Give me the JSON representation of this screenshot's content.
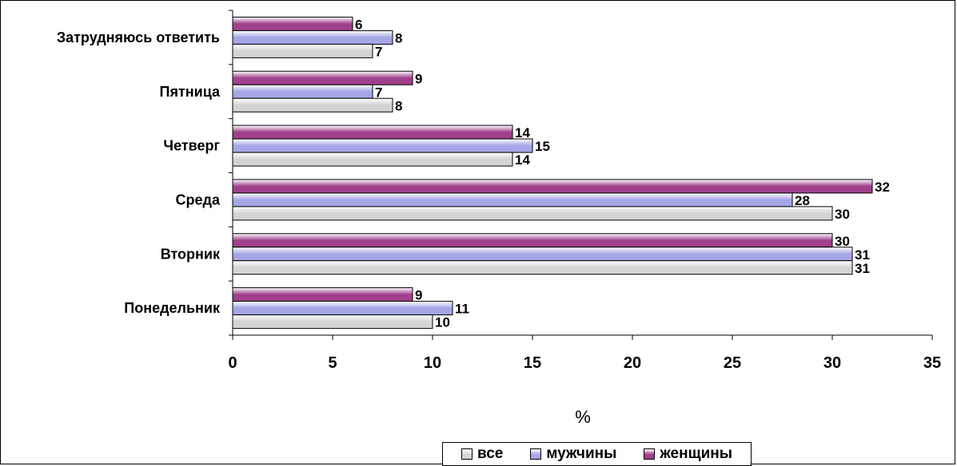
{
  "chart_data": {
    "type": "bar",
    "orientation": "horizontal",
    "categories": [
      "Понедельник",
      "Вторник",
      "Среда",
      "Четверг",
      "Пятница",
      "Затрудняюсь ответить"
    ],
    "series": [
      {
        "name": "все",
        "values": [
          10,
          31,
          30,
          14,
          8,
          7
        ],
        "color": "#d4d4d4"
      },
      {
        "name": "мужчины",
        "values": [
          11,
          31,
          28,
          15,
          7,
          8
        ],
        "color": "#a6a6e6"
      },
      {
        "name": "женщины",
        "values": [
          9,
          30,
          32,
          14,
          9,
          6
        ],
        "color": "#a0408c"
      }
    ],
    "xlabel": "%",
    "ylabel": "",
    "xlim": [
      0,
      35
    ],
    "xticks": [
      "0",
      "5",
      "10",
      "15",
      "20",
      "25",
      "30",
      "35"
    ],
    "grid": false,
    "legend_position": "bottom",
    "data_labels": true
  }
}
